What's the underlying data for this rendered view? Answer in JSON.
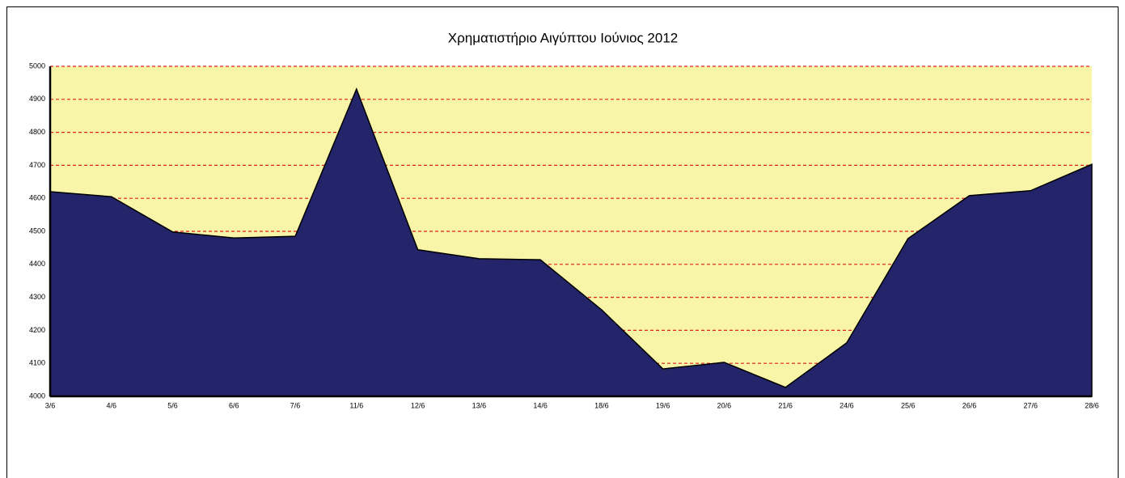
{
  "chart_data": {
    "type": "area",
    "title": "Χρηματιστήριο Αιγύπτου Ιούνιος 2012",
    "categories": [
      "3/6",
      "4/6",
      "5/6",
      "6/6",
      "7/6",
      "11/6",
      "12/6",
      "13/6",
      "14/6",
      "18/6",
      "19/6",
      "20/6",
      "21/6",
      "24/6",
      "25/6",
      "26/6",
      "27/6",
      "28/6"
    ],
    "values": [
      4620,
      4605,
      4498,
      4480,
      4485,
      4931,
      4444,
      4417,
      4414,
      4262,
      4083,
      4103,
      4027,
      4162,
      4478,
      4608,
      4623,
      4703
    ],
    "color": "#24246b",
    "background": "#f8f4a8",
    "grid_color": "#e02020",
    "grid": true,
    "ylim": [
      4000,
      5000
    ],
    "yticks": [
      4000,
      4100,
      4200,
      4300,
      4400,
      4500,
      4600,
      4700,
      4800,
      4900,
      5000
    ]
  }
}
